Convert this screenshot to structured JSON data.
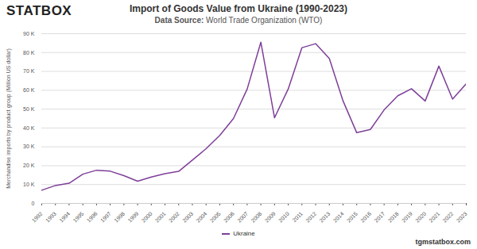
{
  "chart_data": {
    "type": "line",
    "logo": "STATBOX",
    "title": "Import of Goods Value from Ukraine (1990-2023)",
    "subtitle_label": "Data Source:",
    "subtitle": "World Trade Organization (WTO)",
    "y_label": "Merchandise imports by product group (Million US dollar)",
    "footer": "tgmstatbox.com",
    "x": [
      1992,
      1993,
      1994,
      1995,
      1996,
      1997,
      1998,
      1999,
      2000,
      2001,
      2002,
      2003,
      2004,
      2005,
      2006,
      2007,
      2008,
      2009,
      2010,
      2011,
      2012,
      2013,
      2014,
      2015,
      2016,
      2017,
      2018,
      2019,
      2020,
      2021,
      2022,
      2023
    ],
    "series": [
      {
        "name": "Ukraine",
        "color": "#7e3f98",
        "values": [
          7000,
          9500,
          10700,
          15500,
          17600,
          17100,
          14700,
          11800,
          14000,
          15800,
          17000,
          23000,
          29000,
          36100,
          45000,
          60600,
          85500,
          45400,
          60700,
          82600,
          84700,
          76900,
          54400,
          37500,
          39200,
          49600,
          57100,
          60800,
          54300,
          72800,
          55300,
          63500
        ]
      }
    ],
    "xlim": [
      1992,
      2023
    ],
    "xticks": [
      1992,
      1993,
      1994,
      1995,
      1996,
      1997,
      1998,
      1999,
      2000,
      2001,
      2002,
      2003,
      2004,
      2005,
      2006,
      2007,
      2008,
      2009,
      2010,
      2011,
      2012,
      2013,
      2014,
      2015,
      2016,
      2017,
      2018,
      2019,
      2020,
      2021,
      2022,
      2023
    ],
    "ylim": [
      0,
      90000
    ],
    "yticks": [
      0,
      {
        "value": 10000,
        "label": "10 K"
      },
      {
        "value": 20000,
        "label": "20 K"
      },
      {
        "value": 30000,
        "label": "30 K"
      },
      {
        "value": 40000,
        "label": "40 K"
      },
      {
        "value": 50000,
        "label": "50 K"
      },
      {
        "value": 60000,
        "label": "60 K"
      },
      {
        "value": 70000,
        "label": "70 K"
      },
      {
        "value": 80000,
        "label": "80 K"
      },
      {
        "value": 90000,
        "label": "90 K"
      }
    ],
    "grid": true,
    "legend": "bottom"
  }
}
